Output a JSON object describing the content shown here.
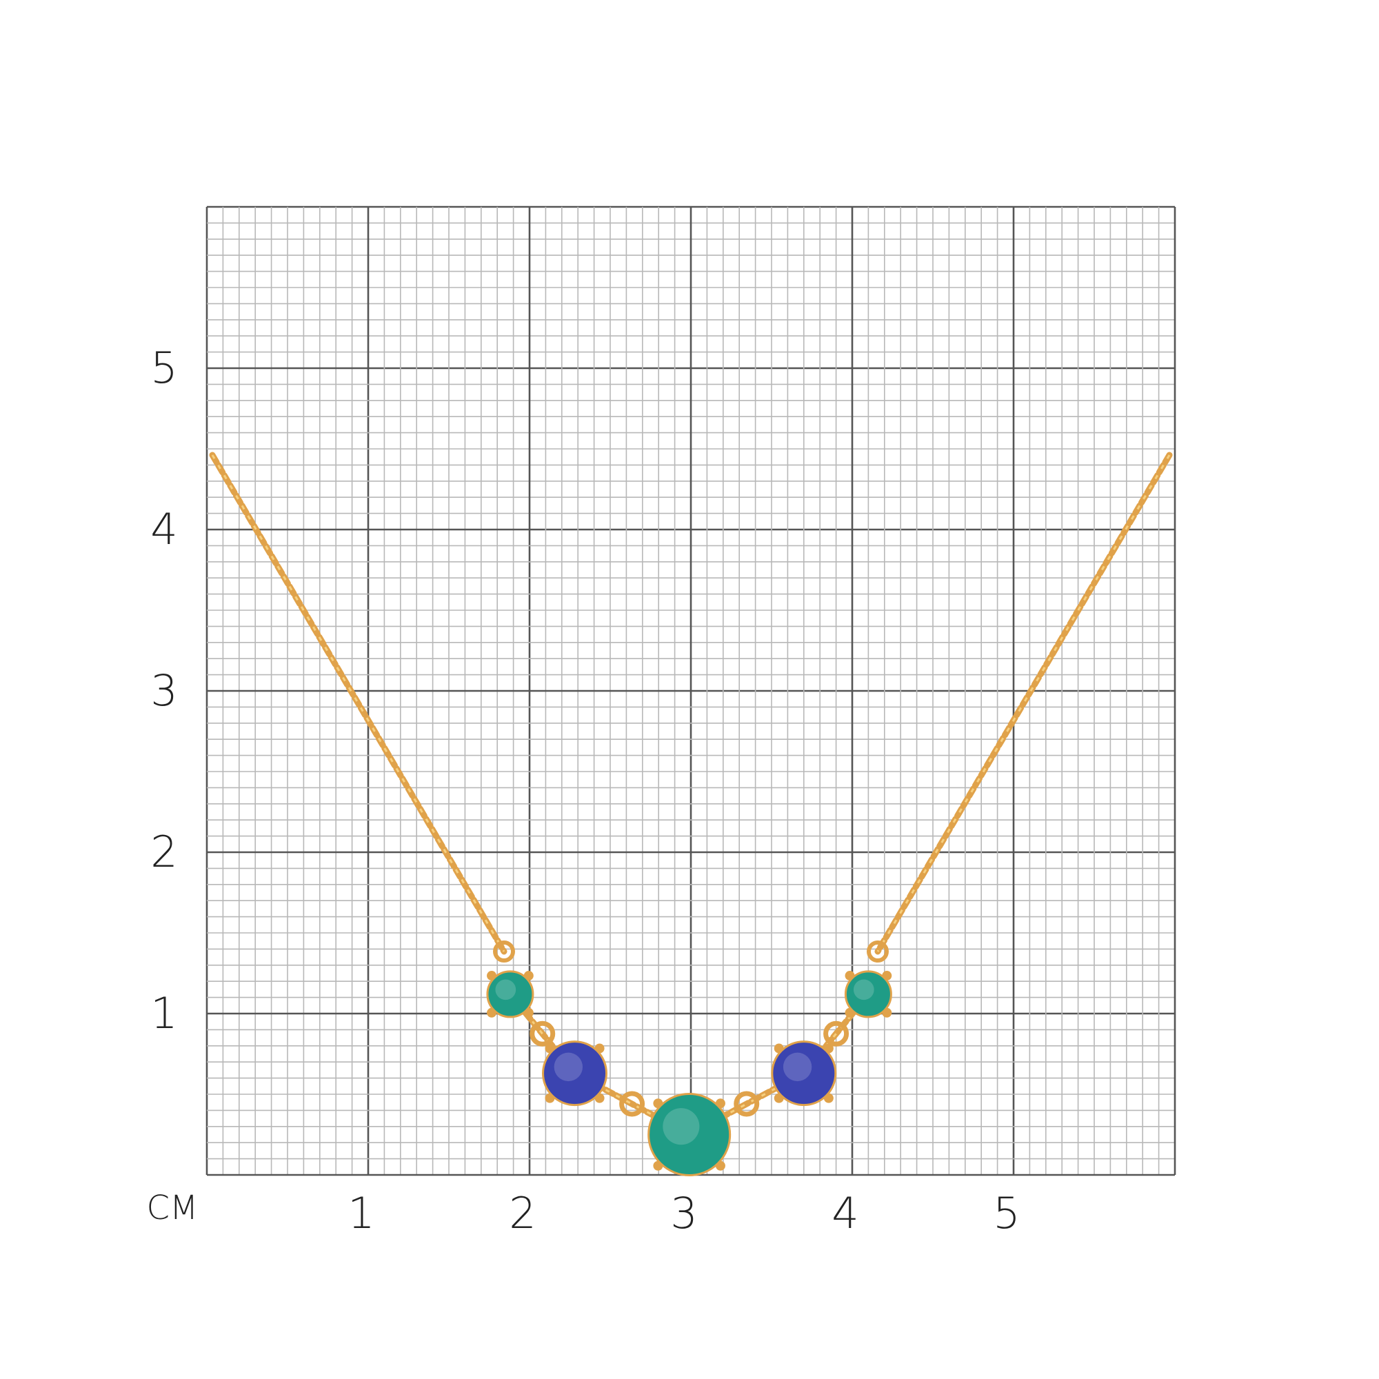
{
  "ruler": {
    "unit_label": "СМ",
    "x_labels": [
      "1",
      "2",
      "3",
      "4",
      "5"
    ],
    "y_labels": [
      "1",
      "2",
      "3",
      "4",
      "5"
    ],
    "x_range_cm": [
      0,
      6
    ],
    "y_range_cm": [
      0,
      6
    ],
    "minor_step_cm": 0.1,
    "major_step_cm": 1
  },
  "colors": {
    "minor_grid": "#b8b8b8",
    "major_grid": "#555555",
    "gold": "#e0a24a",
    "gold_light": "#f6cf7e",
    "green_stone": "#1f9c86",
    "blue_stone": "#3b44b0",
    "label": "#222222"
  },
  "product": {
    "type": "necklace",
    "stones": [
      {
        "color": "green",
        "x_cm": 1.88,
        "y_cm": 1.12,
        "size": "small"
      },
      {
        "color": "blue",
        "x_cm": 2.28,
        "y_cm": 0.63,
        "size": "medium"
      },
      {
        "color": "green",
        "x_cm": 2.99,
        "y_cm": 0.25,
        "size": "large"
      },
      {
        "color": "blue",
        "x_cm": 3.7,
        "y_cm": 0.63,
        "size": "medium"
      },
      {
        "color": "green",
        "x_cm": 4.1,
        "y_cm": 1.12,
        "size": "small"
      }
    ]
  }
}
